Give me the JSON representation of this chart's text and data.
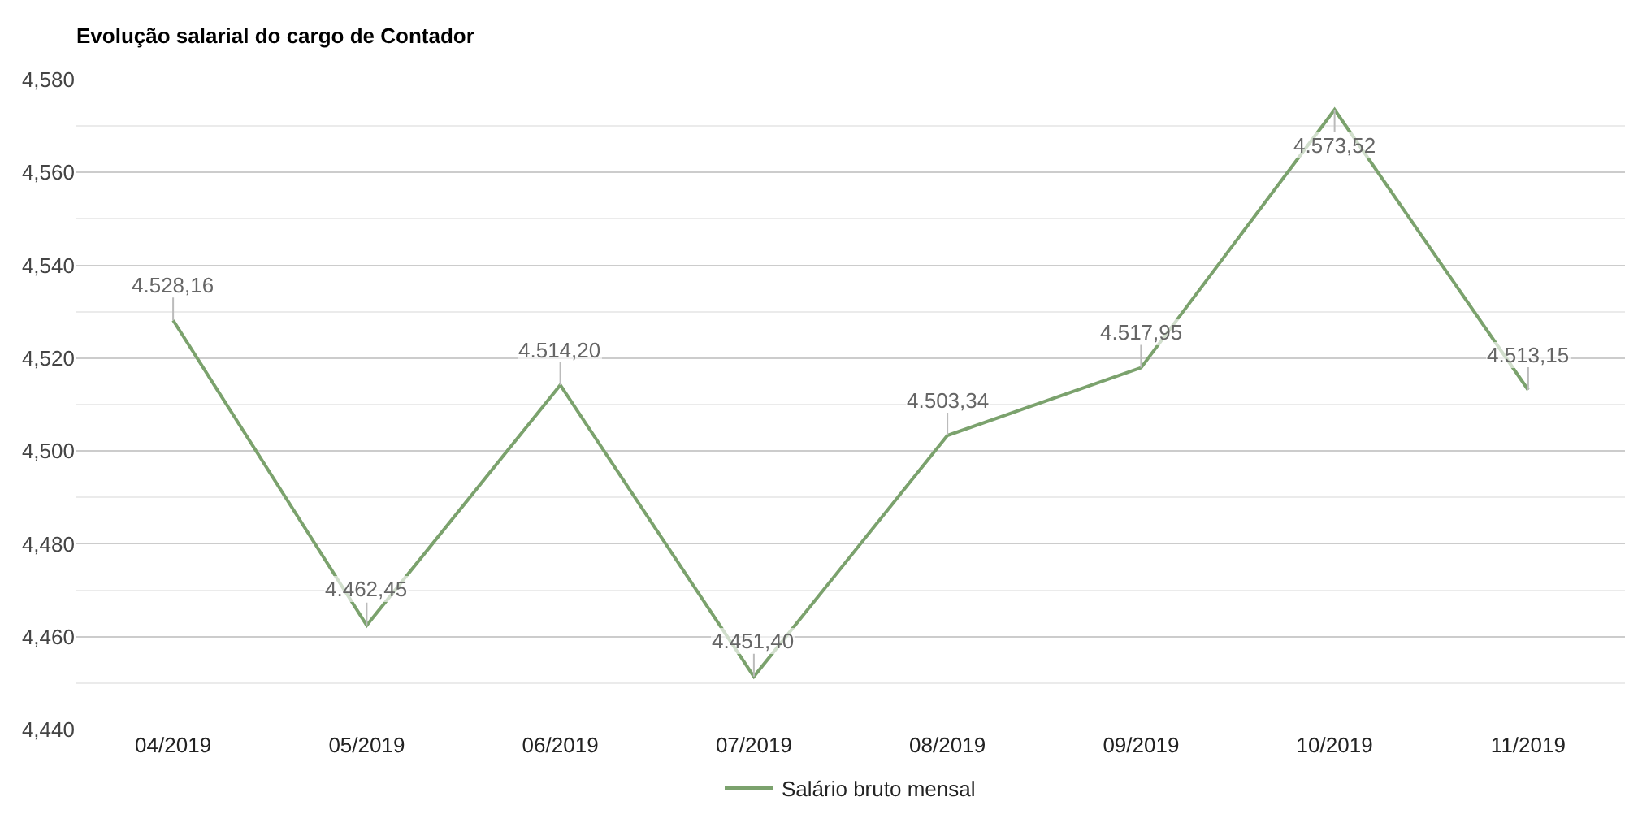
{
  "chart_data": {
    "type": "line",
    "title": "Evolução salarial do cargo de Contador",
    "categories": [
      "04/2019",
      "05/2019",
      "06/2019",
      "07/2019",
      "08/2019",
      "09/2019",
      "10/2019",
      "11/2019"
    ],
    "series": [
      {
        "name": "Salário bruto mensal",
        "color": "#7ba26d",
        "values": [
          4528.16,
          4462.45,
          4514.2,
          4451.4,
          4503.34,
          4517.95,
          4573.52,
          4513.15
        ],
        "value_labels": [
          "4.528,16",
          "4.462,45",
          "4.514,20",
          "4.451,40",
          "4.503,34",
          "4.517,95",
          "4.573,52",
          "4.513,15"
        ]
      }
    ],
    "ylim": [
      4440,
      4580
    ],
    "yticks": [
      {
        "value": 4440,
        "label": "4,440"
      },
      {
        "value": 4450,
        "label": null
      },
      {
        "value": 4460,
        "label": "4,460"
      },
      {
        "value": 4470,
        "label": null
      },
      {
        "value": 4480,
        "label": "4,480"
      },
      {
        "value": 4490,
        "label": null
      },
      {
        "value": 4500,
        "label": "4,500"
      },
      {
        "value": 4510,
        "label": null
      },
      {
        "value": 4520,
        "label": "4,520"
      },
      {
        "value": 4530,
        "label": null
      },
      {
        "value": 4540,
        "label": "4,540"
      },
      {
        "value": 4550,
        "label": null
      },
      {
        "value": 4560,
        "label": "4,560"
      },
      {
        "value": 4570,
        "label": null
      },
      {
        "value": 4580,
        "label": "4,580"
      }
    ],
    "grid": "y",
    "legend": "bottom"
  }
}
